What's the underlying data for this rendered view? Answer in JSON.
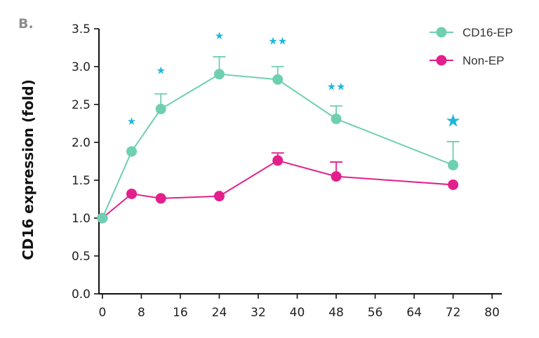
{
  "panel_label": "B.",
  "chart_data": {
    "type": "line",
    "title": "",
    "xlabel": "",
    "ylabel": "CD16 expression (fold)",
    "xlim": [
      -2,
      82
    ],
    "ylim": [
      0,
      3.5
    ],
    "x_ticks": [
      0,
      8,
      16,
      24,
      32,
      40,
      48,
      56,
      64,
      72,
      80
    ],
    "y_ticks": [
      "0.0",
      "0.5",
      "1.0",
      "1.5",
      "2.0",
      "2.5",
      "3.0",
      "3.5"
    ],
    "grid": false,
    "legend_position": "top-right",
    "series": [
      {
        "name": "CD16-EP",
        "color": "#6fcfb1",
        "x": [
          0,
          6,
          12,
          24,
          36,
          48,
          72
        ],
        "y": [
          1.0,
          1.88,
          2.44,
          2.9,
          2.83,
          2.31,
          1.7
        ],
        "error_plus": [
          0,
          0,
          0.2,
          0.23,
          0.17,
          0.17,
          0.31
        ]
      },
      {
        "name": "Non-EP",
        "color": "#e31f8c",
        "x": [
          0,
          6,
          12,
          24,
          36,
          48,
          72
        ],
        "y": [
          1.0,
          1.32,
          1.26,
          1.29,
          1.76,
          1.55,
          1.44
        ],
        "error_plus": [
          0,
          0,
          0,
          0,
          0.1,
          0.19,
          0
        ]
      }
    ],
    "significance": [
      {
        "x": 6,
        "y": 2.28,
        "label": "★",
        "size": "small"
      },
      {
        "x": 12,
        "y": 2.95,
        "label": "★",
        "size": "small"
      },
      {
        "x": 24,
        "y": 3.41,
        "label": "★",
        "size": "small"
      },
      {
        "x": 36,
        "y": 3.34,
        "label": "★★",
        "size": "small"
      },
      {
        "x": 48,
        "y": 2.74,
        "label": "★★",
        "size": "small"
      },
      {
        "x": 72,
        "y": 2.29,
        "label": "★",
        "size": "large"
      }
    ],
    "significance_color": "#1fb7dc"
  }
}
